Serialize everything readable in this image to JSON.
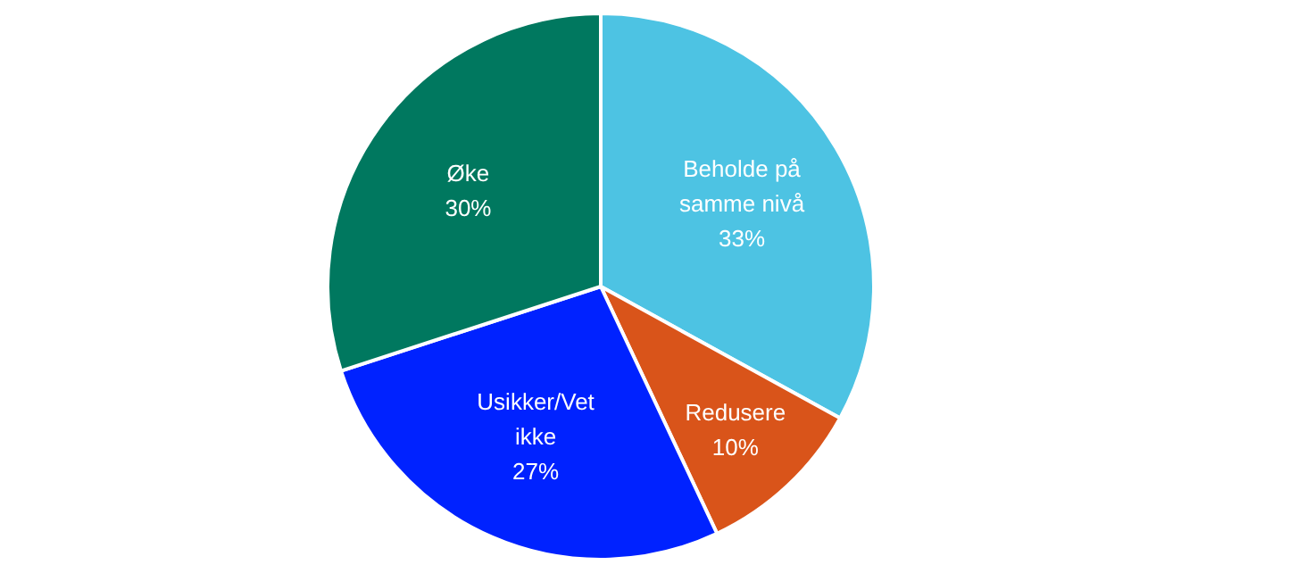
{
  "chart_data": {
    "type": "pie",
    "categories": [
      "Beholde på samme nivå",
      "Redusere",
      "Usikker/Vet ikke",
      "Øke"
    ],
    "values": [
      33,
      10,
      27,
      30
    ],
    "colors": [
      "#4dc3e3",
      "#d9541a",
      "#0022ff",
      "#00785f"
    ],
    "value_labels": [
      "33%",
      "10%",
      "27%",
      "30%"
    ]
  }
}
